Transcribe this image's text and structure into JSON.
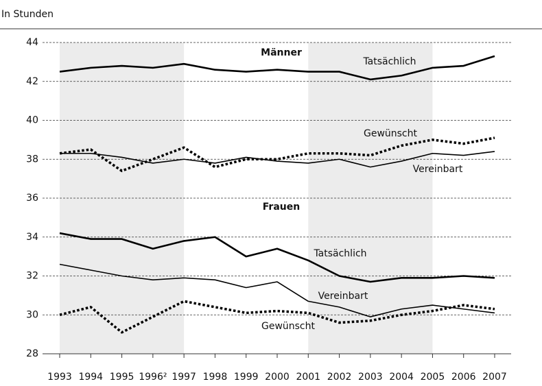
{
  "chart_data": {
    "type": "line",
    "subtitle": "In Stunden",
    "categories": [
      "1993",
      "1994",
      "1995",
      "1996²",
      "1997",
      "1998",
      "1999",
      "2000",
      "2001",
      "2002",
      "2003",
      "2004",
      "2005",
      "2006",
      "2007"
    ],
    "ylim": [
      28,
      44
    ],
    "yticks": [
      28,
      30,
      32,
      34,
      36,
      38,
      40,
      42,
      44
    ],
    "grid": true,
    "groups": [
      {
        "label": "Männer",
        "series": [
          {
            "name": "Tatsächlich",
            "color": "#000",
            "style": "thick",
            "values": [
              42.5,
              42.7,
              42.8,
              42.7,
              42.9,
              42.6,
              42.5,
              42.6,
              42.5,
              42.5,
              42.1,
              42.3,
              42.7,
              42.8,
              43.3
            ]
          },
          {
            "name": "Gewünscht",
            "color": "#000",
            "style": "dotted",
            "values": [
              38.3,
              38.5,
              37.4,
              38.0,
              38.6,
              37.6,
              38.0,
              38.0,
              38.3,
              38.3,
              38.2,
              38.7,
              39.0,
              38.8,
              39.1
            ]
          },
          {
            "name": "Vereinbart",
            "color": "#000",
            "style": "thin",
            "values": [
              38.3,
              38.3,
              38.1,
              37.8,
              38.0,
              37.8,
              38.1,
              37.9,
              37.8,
              38.0,
              37.6,
              37.9,
              38.3,
              38.2,
              38.4
            ]
          }
        ]
      },
      {
        "label": "Frauen",
        "series": [
          {
            "name": "Tatsächlich",
            "color": "#000",
            "style": "thick",
            "values": [
              34.2,
              33.9,
              33.9,
              33.4,
              33.8,
              34.0,
              33.0,
              33.4,
              32.8,
              32.0,
              31.7,
              31.9,
              31.9,
              32.0,
              31.9
            ]
          },
          {
            "name": "Vereinbart",
            "color": "#000",
            "style": "thin",
            "values": [
              32.6,
              32.3,
              32.0,
              31.8,
              31.9,
              31.8,
              31.4,
              31.7,
              30.7,
              30.4,
              29.9,
              30.3,
              30.5,
              30.3,
              30.1
            ]
          },
          {
            "name": "Gewünscht",
            "color": "#000",
            "style": "dotted",
            "values": [
              30.0,
              30.4,
              29.1,
              29.9,
              30.7,
              30.4,
              30.1,
              30.2,
              30.1,
              29.6,
              29.7,
              30.0,
              30.2,
              30.5,
              30.3
            ]
          }
        ]
      }
    ]
  }
}
